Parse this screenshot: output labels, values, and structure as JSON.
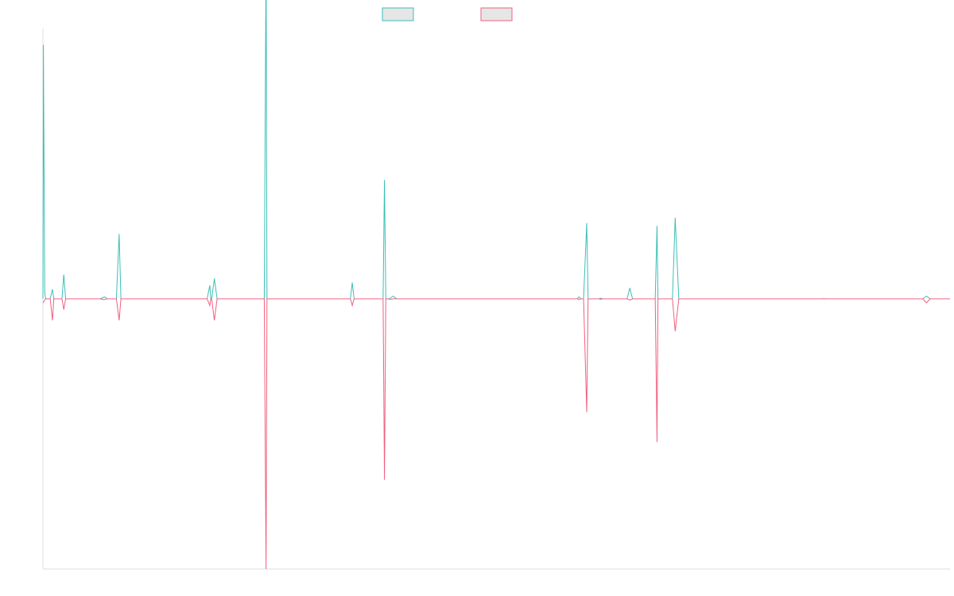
{
  "chart_data": {
    "type": "line",
    "title": "",
    "xlabel": "",
    "ylabel": "",
    "xlim": [
      0,
      1000
    ],
    "ylim": [
      -100,
      100
    ],
    "grid": false,
    "legend": "top-center",
    "colors": {
      "series_0": "#3bbfb8",
      "series_1": "#f0607f",
      "legend_fill": "#e6e6e6",
      "axis": "#dcdcdc"
    },
    "series": [
      {
        "name": "",
        "color": "#3bbfb8",
        "points": [
          [
            0,
            0
          ],
          [
            0.5,
            94
          ],
          [
            2,
            2
          ],
          [
            3,
            0
          ],
          [
            8,
            0
          ],
          [
            10.5,
            3.5
          ],
          [
            12,
            0
          ],
          [
            21,
            0
          ],
          [
            23,
            9
          ],
          [
            25,
            0
          ],
          [
            63,
            0
          ],
          [
            68,
            0.7
          ],
          [
            71,
            0
          ],
          [
            81,
            0
          ],
          [
            84,
            24
          ],
          [
            86,
            0
          ],
          [
            181,
            0
          ],
          [
            184,
            5
          ],
          [
            185,
            0
          ],
          [
            186,
            0
          ],
          [
            189,
            7.5
          ],
          [
            192,
            0
          ],
          [
            244,
            0
          ],
          [
            246,
            127
          ],
          [
            247,
            0
          ],
          [
            339,
            0
          ],
          [
            341,
            6
          ],
          [
            343,
            0
          ],
          [
            375,
            0
          ],
          [
            376.5,
            44
          ],
          [
            378,
            0
          ],
          [
            382,
            0
          ],
          [
            386,
            1
          ],
          [
            390,
            0
          ],
          [
            577,
            0
          ],
          [
            589,
            0
          ],
          [
            591,
            0.7
          ],
          [
            593,
            0
          ],
          [
            596,
            0
          ],
          [
            599.5,
            28
          ],
          [
            601,
            0
          ],
          [
            613,
            0
          ],
          [
            615,
            0.2
          ],
          [
            617,
            0
          ],
          [
            644,
            0
          ],
          [
            647,
            4
          ],
          [
            650,
            0
          ],
          [
            675,
            0
          ],
          [
            677,
            27
          ],
          [
            678,
            0
          ],
          [
            694,
            0
          ],
          [
            697,
            30
          ],
          [
            701,
            0
          ],
          [
            860,
            0
          ],
          [
            861,
            0.1
          ],
          [
            862,
            0
          ],
          [
            970,
            0
          ],
          [
            974,
            1
          ],
          [
            978,
            0
          ],
          [
            1000,
            0
          ]
        ]
      },
      {
        "name": "",
        "color": "#f0607f",
        "points": [
          [
            0,
            -1.5
          ],
          [
            3,
            0
          ],
          [
            8,
            0
          ],
          [
            10.5,
            -8
          ],
          [
            12,
            0
          ],
          [
            21,
            0
          ],
          [
            23,
            -4
          ],
          [
            25,
            0
          ],
          [
            63,
            0
          ],
          [
            67,
            -0.3
          ],
          [
            71,
            0
          ],
          [
            81,
            0
          ],
          [
            84,
            -8
          ],
          [
            86,
            0
          ],
          [
            181,
            0
          ],
          [
            184,
            -2.5
          ],
          [
            185,
            0
          ],
          [
            186,
            0
          ],
          [
            189,
            -8
          ],
          [
            192,
            0
          ],
          [
            244,
            0
          ],
          [
            246,
            -100
          ],
          [
            247,
            0
          ],
          [
            339,
            0
          ],
          [
            341,
            -2.5
          ],
          [
            343,
            0
          ],
          [
            375,
            0
          ],
          [
            376.5,
            -67
          ],
          [
            378,
            0
          ],
          [
            380,
            0
          ],
          [
            383,
            -0.2
          ],
          [
            386,
            0
          ],
          [
            577,
            0
          ],
          [
            589,
            0
          ],
          [
            591,
            -0.3
          ],
          [
            593,
            0
          ],
          [
            596,
            0
          ],
          [
            599.5,
            -42
          ],
          [
            601,
            0
          ],
          [
            613,
            0
          ],
          [
            615,
            -0.2
          ],
          [
            617,
            0
          ],
          [
            644,
            0
          ],
          [
            647,
            -0.5
          ],
          [
            650,
            0
          ],
          [
            675,
            0
          ],
          [
            677,
            -53
          ],
          [
            678,
            0
          ],
          [
            694,
            0
          ],
          [
            697,
            -12
          ],
          [
            701,
            0
          ],
          [
            970,
            0
          ],
          [
            974,
            -1.5
          ],
          [
            978,
            0
          ],
          [
            1000,
            0
          ]
        ]
      }
    ]
  }
}
